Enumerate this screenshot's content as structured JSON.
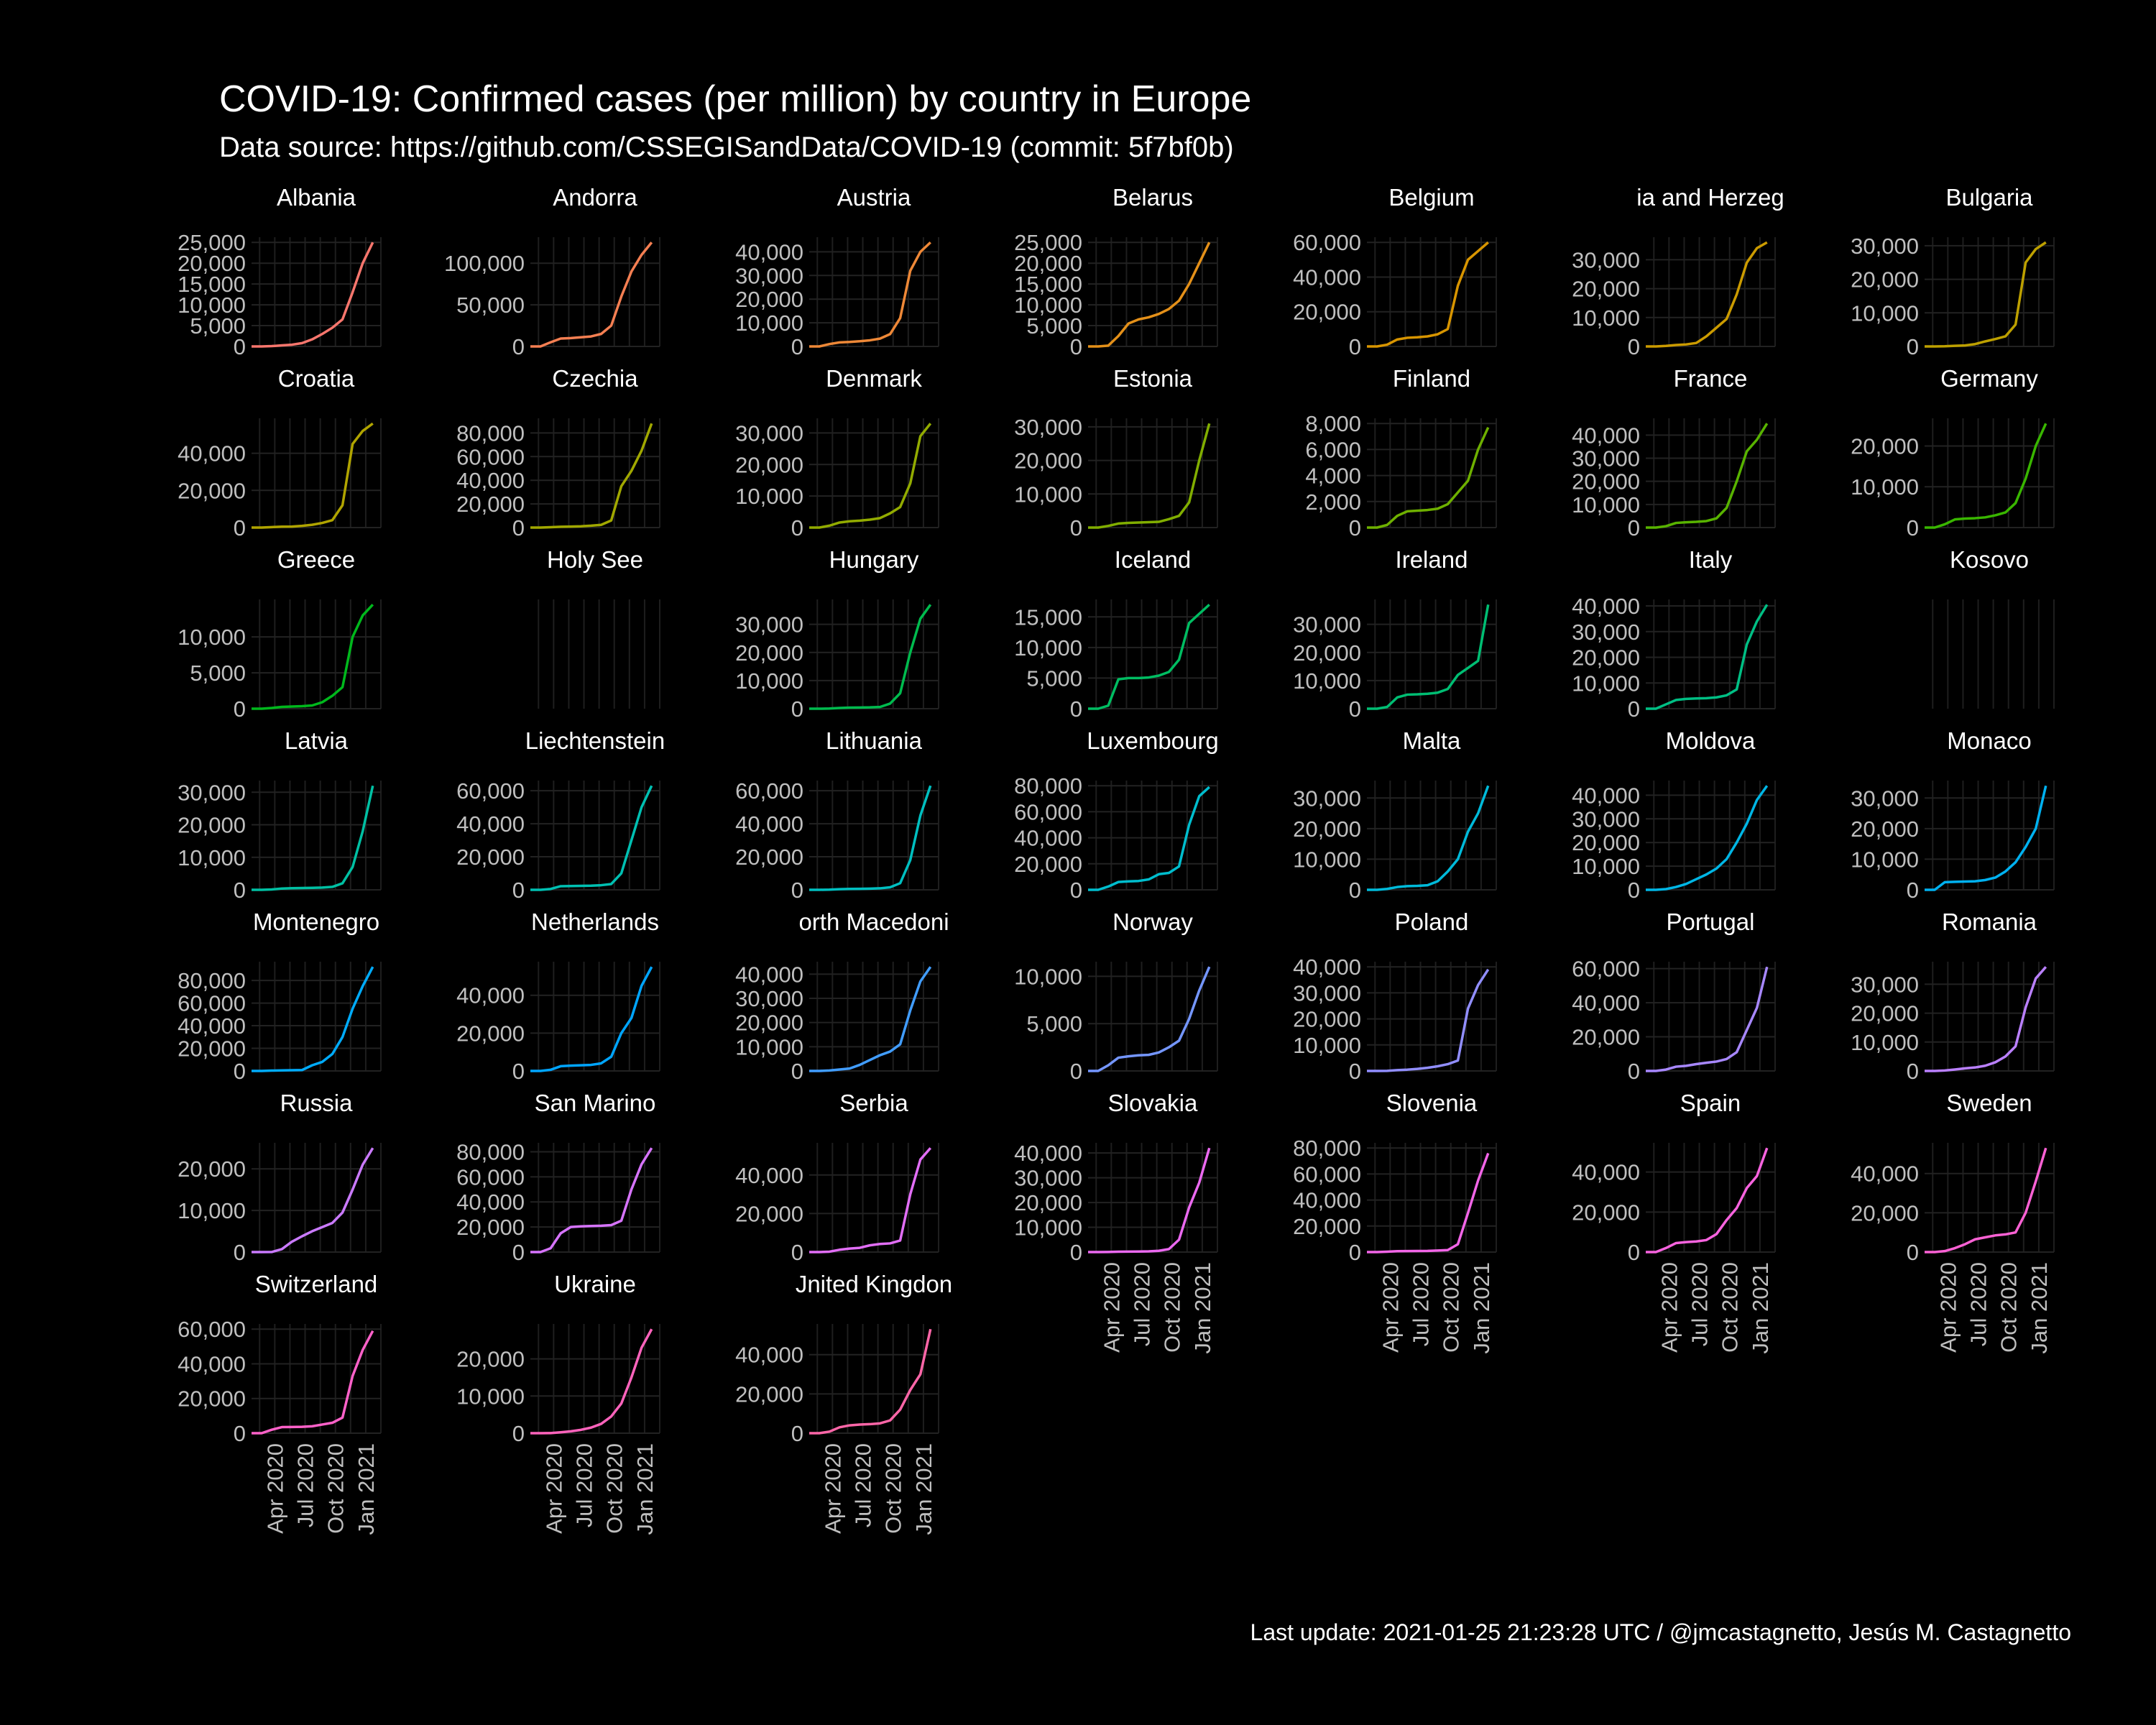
{
  "header": {
    "title": "COVID-19: Confirmed cases (per million)  by country in Europe",
    "subtitle": "Data source: https://github.com/CSSEGISandData/COVID-19 (commit: 5f7bf0b)"
  },
  "footer": {
    "caption": "Last update:  2021-01-25 21:23:28 UTC / @jmcastagnetto, Jesús M. Castagnetto"
  },
  "chart_data": {
    "type": "line",
    "layout": "faceted small multiples, 7 columns",
    "xlabel": "",
    "ylabel": "",
    "x_range": [
      "2020-01-22",
      "2021-01-25"
    ],
    "x_ticks": [
      "Apr 2020",
      "Jul 2020",
      "Oct 2020",
      "Jan 2021"
    ],
    "x_note": "y values sampled monthly from 2020-01 to 2021-01 (13 points, x in months since Jan 2020)",
    "panels": [
      {
        "name": "Albania",
        "label": "Albania",
        "color": "#F8766D",
        "yticks": [
          0,
          5000,
          10000,
          15000,
          20000,
          25000
        ],
        "values": [
          0,
          0,
          80,
          260,
          420,
          800,
          1700,
          3000,
          4500,
          6500,
          13000,
          20000,
          25000
        ]
      },
      {
        "name": "Andorra",
        "label": "Andorra",
        "color": "#F57F52",
        "yticks": [
          0,
          50000,
          100000
        ],
        "values": [
          0,
          0,
          5000,
          9500,
          10000,
          11000,
          12000,
          15000,
          25000,
          60000,
          90000,
          110000,
          125000
        ]
      },
      {
        "name": "Austria",
        "label": "Austria",
        "color": "#EE8837",
        "yticks": [
          0,
          10000,
          20000,
          30000,
          40000
        ],
        "values": [
          0,
          0,
          1000,
          1700,
          1900,
          2200,
          2600,
          3300,
          5200,
          12000,
          32000,
          40000,
          44000
        ]
      },
      {
        "name": "Belarus",
        "label": "Belarus",
        "color": "#E49019",
        "yticks": [
          0,
          5000,
          10000,
          15000,
          20000,
          25000
        ],
        "values": [
          0,
          0,
          200,
          2500,
          5500,
          6500,
          7000,
          7800,
          9000,
          11000,
          15000,
          20000,
          25000
        ]
      },
      {
        "name": "Belgium",
        "label": "Belgium",
        "color": "#D89500",
        "yticks": [
          0,
          20000,
          40000,
          60000
        ],
        "values": [
          0,
          0,
          1000,
          4000,
          5000,
          5300,
          5800,
          7000,
          10000,
          35000,
          50000,
          55000,
          60000
        ]
      },
      {
        "name": "Bosnia and Herzegovina",
        "label": "ia and Herzeg",
        "color": "#CB9B00",
        "yticks": [
          0,
          10000,
          20000,
          30000
        ],
        "values": [
          0,
          0,
          200,
          500,
          700,
          1200,
          3500,
          6500,
          9500,
          18000,
          29000,
          34000,
          36000
        ]
      },
      {
        "name": "Bulgaria",
        "label": "Bulgaria",
        "color": "#BDA000",
        "yticks": [
          0,
          10000,
          20000,
          30000
        ],
        "values": [
          0,
          0,
          50,
          200,
          300,
          700,
          1500,
          2200,
          3000,
          6500,
          25000,
          29000,
          31000
        ]
      },
      {
        "name": "Croatia",
        "label": "Croatia",
        "color": "#B0A400",
        "yticks": [
          0,
          20000,
          40000
        ],
        "values": [
          0,
          0,
          250,
          500,
          550,
          900,
          1500,
          2500,
          4000,
          12000,
          45000,
          52000,
          56000
        ]
      },
      {
        "name": "Czechia",
        "label": "Czechia",
        "color": "#A1A800",
        "yticks": [
          0,
          20000,
          40000,
          60000,
          80000
        ],
        "values": [
          0,
          0,
          300,
          700,
          850,
          1100,
          1600,
          2300,
          6000,
          35000,
          48000,
          65000,
          88000
        ]
      },
      {
        "name": "Denmark",
        "label": "Denmark",
        "color": "#92AB00",
        "yticks": [
          0,
          10000,
          20000,
          30000
        ],
        "values": [
          0,
          0,
          600,
          1600,
          2000,
          2200,
          2500,
          3000,
          4500,
          6500,
          14000,
          29000,
          33000
        ]
      },
      {
        "name": "Estonia",
        "label": "Estonia",
        "color": "#81AE00",
        "yticks": [
          0,
          10000,
          20000,
          30000
        ],
        "values": [
          0,
          0,
          500,
          1200,
          1400,
          1500,
          1600,
          1700,
          2500,
          3500,
          7500,
          20000,
          31000
        ]
      },
      {
        "name": "Finland",
        "label": "Finland",
        "color": "#6EB000",
        "yticks": [
          0,
          2000,
          4000,
          6000,
          8000
        ],
        "values": [
          0,
          0,
          200,
          900,
          1250,
          1300,
          1350,
          1450,
          1800,
          2700,
          3600,
          6000,
          7700
        ]
      },
      {
        "name": "France",
        "label": "France",
        "color": "#58B300",
        "yticks": [
          0,
          10000,
          20000,
          30000,
          40000
        ],
        "values": [
          0,
          0,
          600,
          2000,
          2300,
          2500,
          2800,
          4000,
          8500,
          20000,
          33000,
          38000,
          45000
        ]
      },
      {
        "name": "Germany",
        "label": "Germany",
        "color": "#39B600",
        "yticks": [
          0,
          10000,
          20000
        ],
        "values": [
          0,
          0,
          800,
          2000,
          2200,
          2300,
          2500,
          3000,
          3700,
          6000,
          12000,
          20000,
          25500
        ]
      },
      {
        "name": "Greece",
        "label": "Greece",
        "color": "#00B81C",
        "yticks": [
          0,
          5000,
          10000
        ],
        "values": [
          0,
          0,
          100,
          250,
          300,
          350,
          450,
          900,
          1800,
          3000,
          10000,
          13000,
          14500
        ]
      },
      {
        "name": "Holy See",
        "label": "Holy See",
        "color": "#00BA38",
        "yticks": [],
        "values": []
      },
      {
        "name": "Hungary",
        "label": "Hungary",
        "color": "#00BB4E",
        "yticks": [
          0,
          10000,
          20000,
          30000
        ],
        "values": [
          0,
          0,
          50,
          250,
          380,
          420,
          470,
          600,
          1800,
          5500,
          20000,
          32000,
          37000
        ]
      },
      {
        "name": "Iceland",
        "label": "Iceland",
        "color": "#00BD62",
        "yticks": [
          0,
          5000,
          10000,
          15000
        ],
        "values": [
          0,
          0,
          500,
          4800,
          5000,
          5000,
          5100,
          5400,
          6000,
          8000,
          14000,
          15500,
          17000
        ]
      },
      {
        "name": "Ireland",
        "label": "Ireland",
        "color": "#00BE73",
        "yticks": [
          0,
          10000,
          20000,
          30000
        ],
        "values": [
          0,
          0,
          600,
          4000,
          5000,
          5100,
          5300,
          5700,
          7000,
          12000,
          14500,
          17000,
          37000
        ]
      },
      {
        "name": "Italy",
        "label": "Italy",
        "color": "#00BF84",
        "yticks": [
          0,
          10000,
          20000,
          30000,
          40000
        ],
        "values": [
          0,
          0,
          1700,
          3400,
          3800,
          4000,
          4100,
          4400,
          5200,
          7500,
          25000,
          34000,
          40500
        ]
      },
      {
        "name": "Kosovo",
        "label": "Kosovo",
        "color": "#00C094",
        "yticks": [],
        "values": []
      },
      {
        "name": "Latvia",
        "label": "Latvia",
        "color": "#00C0A3",
        "yticks": [
          0,
          10000,
          20000,
          30000
        ],
        "values": [
          0,
          0,
          100,
          400,
          500,
          550,
          600,
          700,
          900,
          2000,
          7000,
          18000,
          32000
        ]
      },
      {
        "name": "Liechtenstein",
        "label": "Liechtenstein",
        "color": "#00C0B2",
        "yticks": [
          0,
          20000,
          40000,
          60000
        ],
        "values": [
          0,
          0,
          500,
          2200,
          2300,
          2400,
          2500,
          2800,
          3500,
          10000,
          30000,
          50000,
          63000
        ]
      },
      {
        "name": "Lithuania",
        "label": "Lithuania",
        "color": "#00BFC0",
        "yticks": [
          0,
          20000,
          40000,
          60000
        ],
        "values": [
          0,
          0,
          100,
          400,
          550,
          600,
          700,
          900,
          1500,
          4000,
          18000,
          45000,
          63000
        ]
      },
      {
        "name": "Luxembourg",
        "label": "Luxembourg",
        "color": "#00BDCD",
        "yticks": [
          0,
          20000,
          40000,
          60000,
          80000
        ],
        "values": [
          0,
          0,
          2500,
          6000,
          6500,
          6800,
          8000,
          12000,
          13000,
          18000,
          50000,
          72000,
          79000
        ]
      },
      {
        "name": "Malta",
        "label": "Malta",
        "color": "#00BADA",
        "yticks": [
          0,
          10000,
          20000,
          30000
        ],
        "values": [
          0,
          0,
          300,
          900,
          1200,
          1300,
          1500,
          2800,
          6000,
          10000,
          19000,
          25000,
          34000
        ]
      },
      {
        "name": "Moldova",
        "label": "Moldova",
        "color": "#00B6E5",
        "yticks": [
          0,
          10000,
          20000,
          30000,
          40000
        ],
        "values": [
          0,
          0,
          300,
          1200,
          2500,
          4500,
          6500,
          9000,
          13000,
          20000,
          28000,
          38000,
          44000
        ]
      },
      {
        "name": "Monaco",
        "label": "Monaco",
        "color": "#00B1F0",
        "yticks": [
          0,
          10000,
          20000,
          30000
        ],
        "values": [
          0,
          0,
          2500,
          2600,
          2700,
          2800,
          3200,
          4000,
          6000,
          9000,
          14000,
          20000,
          34000
        ]
      },
      {
        "name": "Montenegro",
        "label": "Montenegro",
        "color": "#00ABFA",
        "yticks": [
          0,
          20000,
          40000,
          60000,
          80000
        ],
        "values": [
          0,
          0,
          300,
          500,
          600,
          800,
          5000,
          8000,
          15000,
          30000,
          55000,
          75000,
          92000
        ]
      },
      {
        "name": "Netherlands",
        "label": "Netherlands",
        "color": "#00A5FF",
        "yticks": [
          0,
          20000,
          40000
        ],
        "values": [
          0,
          0,
          600,
          2500,
          2800,
          3000,
          3200,
          4000,
          7500,
          20000,
          28000,
          45000,
          55000
        ]
      },
      {
        "name": "North Macedonia",
        "label": "orth Macedoni",
        "color": "#419DFF",
        "yticks": [
          0,
          10000,
          20000,
          30000,
          40000
        ],
        "values": [
          0,
          0,
          200,
          600,
          1000,
          2500,
          4500,
          6500,
          8000,
          11000,
          25000,
          37000,
          43000
        ]
      },
      {
        "name": "Norway",
        "label": "Norway",
        "color": "#7496FF",
        "yticks": [
          0,
          5000,
          10000
        ],
        "values": [
          0,
          0,
          600,
          1400,
          1550,
          1650,
          1700,
          1950,
          2500,
          3200,
          5500,
          8500,
          11000
        ]
      },
      {
        "name": "Poland",
        "label": "Poland",
        "color": "#918EFF",
        "yticks": [
          0,
          10000,
          20000,
          30000,
          40000
        ],
        "values": [
          0,
          0,
          50,
          300,
          500,
          800,
          1200,
          1800,
          2600,
          4000,
          24000,
          33000,
          39000
        ]
      },
      {
        "name": "Portugal",
        "label": "Portugal",
        "color": "#A787FF",
        "yticks": [
          0,
          20000,
          40000,
          60000
        ],
        "values": [
          0,
          0,
          800,
          2500,
          3000,
          4000,
          4800,
          5500,
          7000,
          11000,
          24000,
          37000,
          61000
        ]
      },
      {
        "name": "Romania",
        "label": "Romania",
        "color": "#BA80FF",
        "yticks": [
          0,
          10000,
          20000,
          30000
        ],
        "values": [
          0,
          0,
          150,
          500,
          900,
          1200,
          1800,
          3000,
          5000,
          8500,
          22000,
          32000,
          36000
        ]
      },
      {
        "name": "Russia",
        "label": "Russia",
        "color": "#CA7AFF",
        "yticks": [
          0,
          10000,
          20000
        ],
        "values": [
          0,
          0,
          20,
          700,
          2500,
          3800,
          5000,
          6000,
          7000,
          9500,
          15000,
          21000,
          25000
        ]
      },
      {
        "name": "San Marino",
        "label": "San Marino",
        "color": "#D774FF",
        "yticks": [
          0,
          20000,
          40000,
          60000,
          80000
        ],
        "values": [
          0,
          0,
          3000,
          15000,
          20000,
          20500,
          20800,
          21000,
          21500,
          25000,
          50000,
          70000,
          83000
        ]
      },
      {
        "name": "Serbia",
        "label": "Serbia",
        "color": "#E26EF7",
        "yticks": [
          0,
          20000,
          40000
        ],
        "values": [
          0,
          0,
          200,
          1200,
          1800,
          2200,
          3500,
          4200,
          4500,
          6000,
          30000,
          48000,
          54000
        ]
      },
      {
        "name": "Slovakia",
        "label": "Slovakia",
        "color": "#EB69F0",
        "yticks": [
          0,
          10000,
          20000,
          30000,
          40000
        ],
        "values": [
          0,
          0,
          50,
          150,
          180,
          220,
          300,
          500,
          1200,
          5000,
          18000,
          28000,
          42000
        ]
      },
      {
        "name": "Slovenia",
        "label": "Slovenia",
        "color": "#F265E7",
        "yticks": [
          0,
          20000,
          40000,
          60000,
          80000
        ],
        "values": [
          0,
          0,
          300,
          700,
          750,
          800,
          900,
          1200,
          1500,
          6000,
          30000,
          55000,
          76000
        ]
      },
      {
        "name": "Spain",
        "label": "Spain",
        "color": "#F863DF",
        "yticks": [
          0,
          20000,
          40000
        ],
        "values": [
          0,
          0,
          2000,
          4500,
          5000,
          5300,
          6000,
          9000,
          16000,
          22000,
          32000,
          38000,
          52000
        ]
      },
      {
        "name": "Sweden",
        "label": "Sweden",
        "color": "#FC61D4",
        "yticks": [
          0,
          20000,
          40000
        ],
        "values": [
          0,
          0,
          500,
          2000,
          4000,
          6500,
          7500,
          8500,
          9000,
          10000,
          20000,
          36000,
          53000
        ]
      },
      {
        "name": "Switzerland",
        "label": "Switzerland",
        "color": "#FF61C9",
        "yticks": [
          0,
          20000,
          40000,
          60000
        ],
        "values": [
          0,
          0,
          2000,
          3500,
          3600,
          3700,
          4000,
          5000,
          6000,
          9000,
          33000,
          48000,
          59000
        ]
      },
      {
        "name": "Ukraine",
        "label": "Ukraine",
        "color": "#FF63BC",
        "yticks": [
          0,
          10000,
          20000
        ],
        "values": [
          0,
          0,
          30,
          250,
          500,
          900,
          1500,
          2500,
          4500,
          8000,
          15000,
          23000,
          28000
        ]
      },
      {
        "name": "United Kingdom",
        "label": "Jnited Kingdon",
        "color": "#FF66A8",
        "yticks": [
          0,
          20000,
          40000
        ],
        "values": [
          0,
          0,
          800,
          3000,
          4000,
          4400,
          4600,
          5000,
          6500,
          12000,
          22000,
          30000,
          53000
        ]
      }
    ]
  }
}
